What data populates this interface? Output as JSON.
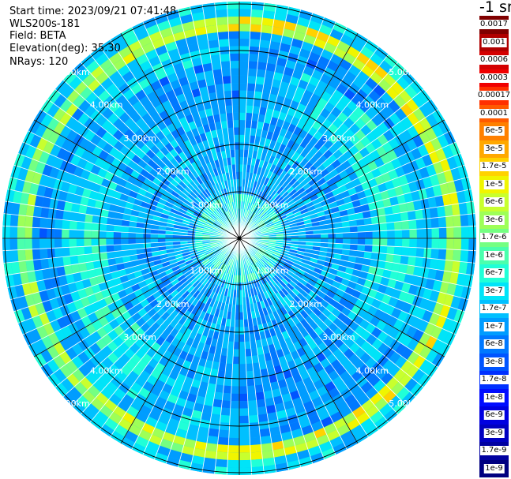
{
  "header": {
    "start_time": "Start time: 2023/09/21 07:41:48",
    "instrument": "WLS200s-181",
    "field": "Field: BETA",
    "elevation": "Elevation(deg): 35.30",
    "nrays": "NRays: 120"
  },
  "colorbar": {
    "unit_label": "-1 sr",
    "levels": [
      {
        "label": "0.0017",
        "color": "#800000"
      },
      {
        "label": "0.001",
        "color": "#b00000"
      },
      {
        "label": "0.0006",
        "color": "#d40000"
      },
      {
        "label": "0.0003",
        "color": "#f00000"
      },
      {
        "label": "0.00017",
        "color": "#ff3000"
      },
      {
        "label": "0.0001",
        "color": "#ff5a00"
      },
      {
        "label": "6e-5",
        "color": "#ff8000"
      },
      {
        "label": "3e-5",
        "color": "#ffa800"
      },
      {
        "label": "1.7e-5",
        "color": "#ffd200"
      },
      {
        "label": "1e-5",
        "color": "#f0f500"
      },
      {
        "label": "6e-6",
        "color": "#c8ff2e"
      },
      {
        "label": "3e-6",
        "color": "#9eff58"
      },
      {
        "label": "1.7e-6",
        "color": "#74ff82"
      },
      {
        "label": "1e-6",
        "color": "#4affad"
      },
      {
        "label": "6e-7",
        "color": "#20ffd7"
      },
      {
        "label": "3e-7",
        "color": "#00e4f8"
      },
      {
        "label": "1.7e-7",
        "color": "#00c0ff"
      },
      {
        "label": "1e-7",
        "color": "#009cff"
      },
      {
        "label": "6e-8",
        "color": "#0078ff"
      },
      {
        "label": "3e-8",
        "color": "#0054ff"
      },
      {
        "label": "1.7e-8",
        "color": "#0030ff"
      },
      {
        "label": "1e-8",
        "color": "#000cff"
      },
      {
        "label": "6e-9",
        "color": "#0000e0"
      },
      {
        "label": "3e-9",
        "color": "#0000c0"
      },
      {
        "label": "1.7e-9",
        "color": "#0000a0"
      },
      {
        "label": "1e-9",
        "color": "#000080"
      }
    ]
  },
  "range_rings": {
    "labels": [
      "1.00km",
      "2.00km",
      "3.00km",
      "4.00km",
      "5.00km"
    ]
  }
}
